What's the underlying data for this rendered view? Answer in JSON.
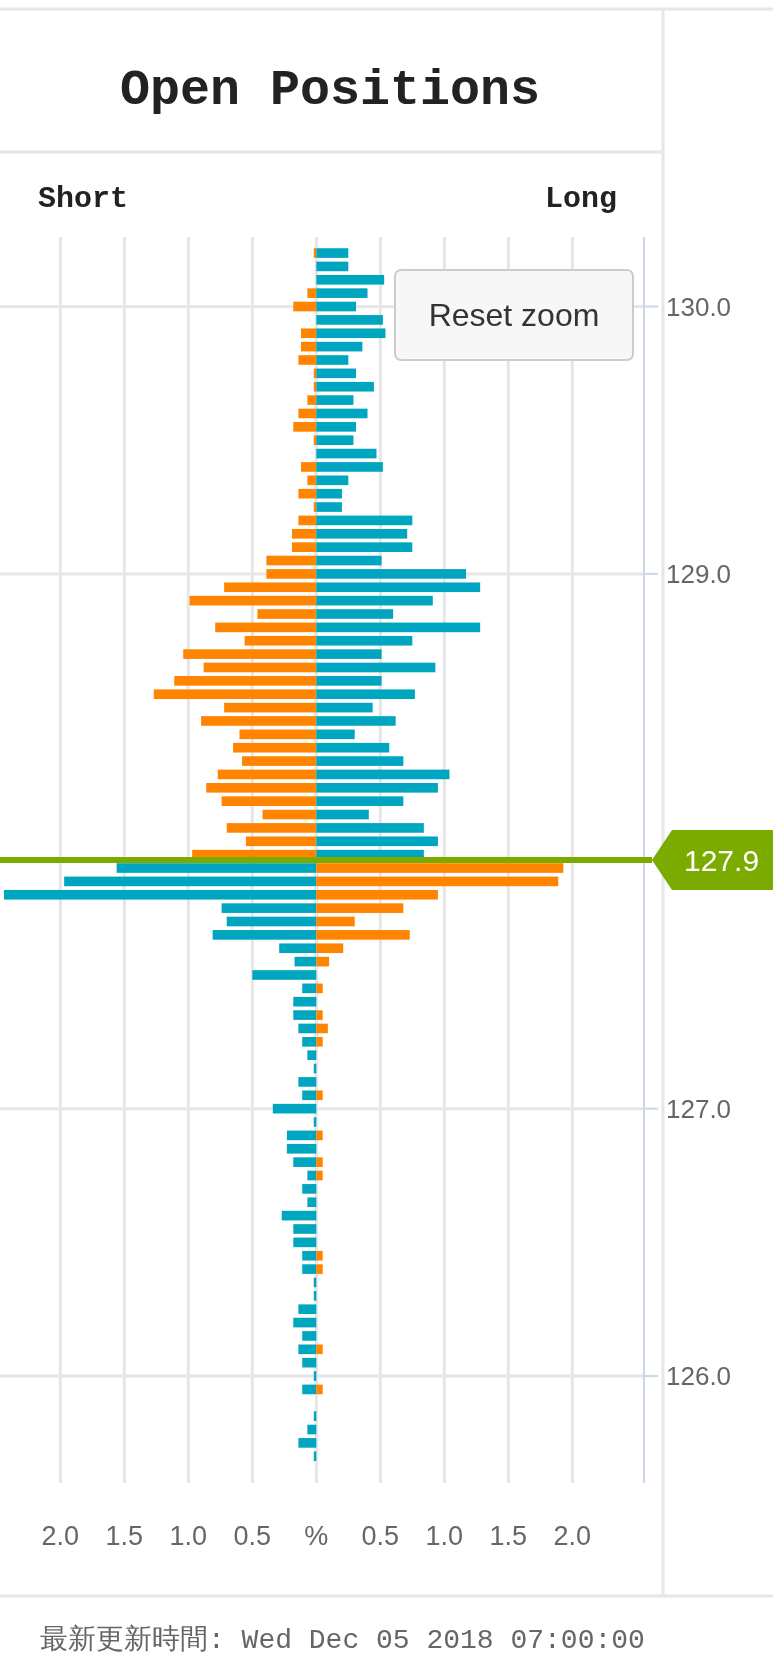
{
  "chart_data": {
    "type": "bar",
    "orientation": "horizontal",
    "stacked": true,
    "title": "Open Positions",
    "annotations": [
      "Short",
      "Long",
      "Reset zoom",
      "最新更新時間: Wed Dec 05 2018 07:00:00"
    ],
    "x": [
      130.2,
      130.15,
      130.1,
      130.05,
      130.0,
      129.95,
      129.9,
      129.85,
      129.8,
      129.75,
      129.7,
      129.65,
      129.6,
      129.55,
      129.5,
      129.45,
      129.4,
      129.35,
      129.3,
      129.25,
      129.2,
      129.15,
      129.1,
      129.05,
      129.0,
      128.95,
      128.9,
      128.85,
      128.8,
      128.75,
      128.7,
      128.65,
      128.6,
      128.55,
      128.5,
      128.45,
      128.4,
      128.35,
      128.3,
      128.25,
      128.2,
      128.15,
      128.1,
      128.05,
      128.0,
      127.95,
      127.9,
      127.85,
      127.8,
      127.75,
      127.7,
      127.65,
      127.6,
      127.55,
      127.5,
      127.45,
      127.4,
      127.35,
      127.3,
      127.25,
      127.2,
      127.15,
      127.1,
      127.05,
      127.0,
      126.95,
      126.9,
      126.85,
      126.8,
      126.75,
      126.7,
      126.65,
      126.6,
      126.55,
      126.5,
      126.45,
      126.4,
      126.35,
      126.3,
      126.25,
      126.2,
      126.15,
      126.1,
      126.05,
      126.0,
      125.95,
      125.9,
      125.85,
      125.8,
      125.75,
      125.7
    ],
    "series": [
      {
        "values": [
          -0.02,
          0,
          0,
          -0.07,
          -0.18,
          0,
          -0.12,
          -0.12,
          -0.14,
          -0.02,
          -0.02,
          -0.07,
          -0.14,
          -0.18,
          -0.02,
          0,
          -0.12,
          -0.07,
          -0.14,
          -0.02,
          -0.14,
          -0.19,
          -0.19,
          -0.39,
          -0.39,
          -0.72,
          -0.99,
          -0.46,
          -0.79,
          -0.56,
          -1.04,
          -0.88,
          -1.11,
          -1.27,
          -0.72,
          -0.9,
          -0.6,
          -0.65,
          -0.58,
          -0.77,
          -0.86,
          -0.74,
          -0.42,
          -0.7,
          -0.55,
          -0.97,
          -1.56,
          -1.97,
          -2.44,
          -0.74,
          -0.7,
          -0.81,
          -0.29,
          -0.17,
          -0.5,
          -0.11,
          -0.18,
          -0.18,
          -0.14,
          -0.11,
          -0.07,
          -0.02,
          -0.14,
          -0.11,
          -0.34,
          -0.02,
          -0.23,
          -0.23,
          -0.18,
          -0.07,
          -0.11,
          -0.07,
          -0.27,
          -0.18,
          -0.18,
          -0.11,
          -0.11,
          -0.02,
          -0.02,
          -0.14,
          -0.18,
          -0.11,
          -0.14,
          -0.11,
          -0.02,
          -0.11,
          0,
          -0.02,
          -0.07,
          -0.14,
          -0.02
        ],
        "colors": [
          "#ff8400",
          "#ff8400",
          "#ff8400",
          "#ff8400",
          "#ff8400",
          "#ff8400",
          "#ff8400",
          "#ff8400",
          "#ff8400",
          "#ff8400",
          "#ff8400",
          "#ff8400",
          "#ff8400",
          "#ff8400",
          "#ff8400",
          "#ff8400",
          "#ff8400",
          "#ff8400",
          "#ff8400",
          "#ff8400",
          "#ff8400",
          "#ff8400",
          "#ff8400",
          "#ff8400",
          "#ff8400",
          "#ff8400",
          "#ff8400",
          "#ff8400",
          "#ff8400",
          "#ff8400",
          "#ff8400",
          "#ff8400",
          "#ff8400",
          "#ff8400",
          "#ff8400",
          "#ff8400",
          "#ff8400",
          "#ff8400",
          "#ff8400",
          "#ff8400",
          "#ff8400",
          "#ff8400",
          "#ff8400",
          "#ff8400",
          "#ff8400",
          "#ff8400",
          "#00a5bf",
          "#00a5bf",
          "#00a5bf",
          "#00a5bf",
          "#00a5bf",
          "#00a5bf",
          "#00a5bf",
          "#00a5bf",
          "#00a5bf",
          "#00a5bf",
          "#00a5bf",
          "#00a5bf",
          "#00a5bf",
          "#00a5bf",
          "#00a5bf",
          "#00a5bf",
          "#00a5bf",
          "#00a5bf",
          "#00a5bf",
          "#00a5bf",
          "#00a5bf",
          "#00a5bf",
          "#00a5bf",
          "#00a5bf",
          "#00a5bf",
          "#00a5bf",
          "#00a5bf",
          "#00a5bf",
          "#00a5bf",
          "#00a5bf",
          "#00a5bf",
          "#00a5bf",
          "#00a5bf",
          "#00a5bf",
          "#00a5bf",
          "#00a5bf",
          "#00a5bf",
          "#00a5bf",
          "#00a5bf",
          "#00a5bf",
          "#00a5bf",
          "#00a5bf",
          "#00a5bf",
          "#00a5bf",
          "#00a5bf"
        ]
      },
      {
        "values": [
          0.25,
          0.25,
          0.53,
          0.4,
          0.31,
          0.52,
          0.54,
          0.36,
          0.25,
          0.31,
          0.45,
          0.29,
          0.4,
          0.31,
          0.29,
          0.47,
          0.52,
          0.25,
          0.2,
          0.2,
          0.75,
          0.71,
          0.75,
          0.51,
          1.17,
          1.28,
          0.91,
          0.6,
          1.28,
          0.75,
          0.51,
          0.93,
          0.51,
          0.77,
          0.44,
          0.62,
          0.3,
          0.57,
          0.68,
          1.04,
          0.95,
          0.68,
          0.41,
          0.84,
          0.95,
          0.84,
          1.93,
          1.89,
          0.95,
          0.68,
          0.3,
          0.73,
          0.21,
          0.1,
          0,
          0.05,
          0,
          0.05,
          0.09,
          0.05,
          0,
          0,
          0,
          0.05,
          0,
          0,
          0.05,
          0,
          0.05,
          0.05,
          0,
          0,
          0,
          0,
          0,
          0.05,
          0.05,
          0,
          0,
          0,
          0,
          0,
          0.05,
          0,
          0,
          0.05,
          0,
          0,
          0,
          0,
          0
        ],
        "colors": [
          "#00a5bf",
          "#00a5bf",
          "#00a5bf",
          "#00a5bf",
          "#00a5bf",
          "#00a5bf",
          "#00a5bf",
          "#00a5bf",
          "#00a5bf",
          "#00a5bf",
          "#00a5bf",
          "#00a5bf",
          "#00a5bf",
          "#00a5bf",
          "#00a5bf",
          "#00a5bf",
          "#00a5bf",
          "#00a5bf",
          "#00a5bf",
          "#00a5bf",
          "#00a5bf",
          "#00a5bf",
          "#00a5bf",
          "#00a5bf",
          "#00a5bf",
          "#00a5bf",
          "#00a5bf",
          "#00a5bf",
          "#00a5bf",
          "#00a5bf",
          "#00a5bf",
          "#00a5bf",
          "#00a5bf",
          "#00a5bf",
          "#00a5bf",
          "#00a5bf",
          "#00a5bf",
          "#00a5bf",
          "#00a5bf",
          "#00a5bf",
          "#00a5bf",
          "#00a5bf",
          "#00a5bf",
          "#00a5bf",
          "#00a5bf",
          "#00a5bf",
          "#ff8400",
          "#ff8400",
          "#ff8400",
          "#ff8400",
          "#ff8400",
          "#ff8400",
          "#ff8400",
          "#ff8400",
          "#ff8400",
          "#ff8400",
          "#ff8400",
          "#ff8400",
          "#ff8400",
          "#ff8400",
          "#ff8400",
          "#ff8400",
          "#ff8400",
          "#ff8400",
          "#ff8400",
          "#ff8400",
          "#ff8400",
          "#ff8400",
          "#ff8400",
          "#ff8400",
          "#ff8400",
          "#ff8400",
          "#ff8400",
          "#ff8400",
          "#ff8400",
          "#ff8400",
          "#ff8400",
          "#ff8400",
          "#ff8400",
          "#ff8400",
          "#ff8400",
          "#ff8400",
          "#ff8400",
          "#ff8400",
          "#ff8400",
          "#ff8400",
          "#ff8400",
          "#ff8400",
          "#ff8400",
          "#ff8400",
          "#ff8400"
        ]
      }
    ],
    "xlim": [
      -2.44,
      2.56
    ],
    "xticks": [
      {
        "value": -2,
        "label": "2.0"
      },
      {
        "value": -1.5,
        "label": "1.5"
      },
      {
        "value": -1,
        "label": "1.0"
      },
      {
        "value": -0.5,
        "label": "0.5"
      },
      {
        "value": 0,
        "label": "%"
      },
      {
        "value": 0.5,
        "label": "0.5"
      },
      {
        "value": 1,
        "label": "1.0"
      },
      {
        "value": 1.5,
        "label": "1.5"
      },
      {
        "value": 2,
        "label": "2.0"
      }
    ],
    "ylim": [
      125.6,
      130.26
    ],
    "yticks": [
      {
        "value": 126,
        "label": "126.0"
      },
      {
        "value": 127,
        "label": "127.0"
      },
      {
        "value": 129,
        "label": "129.0"
      },
      {
        "value": 130,
        "label": "130.0"
      }
    ],
    "ref_lines": [
      {
        "axis": "y",
        "value": 127.93,
        "label": "127.9",
        "color": "#7cab00"
      }
    ],
    "grid": true
  }
}
